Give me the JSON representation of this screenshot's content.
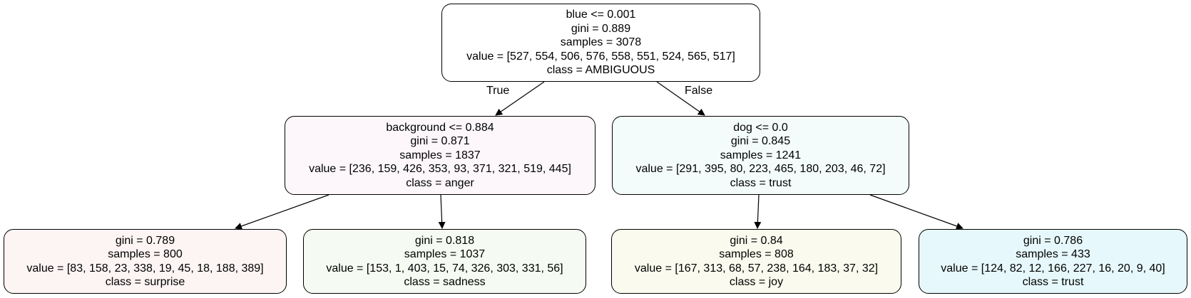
{
  "colors": {
    "root": "#ffffff",
    "n1": "#fdf7fb",
    "n2": "#f3fcfb",
    "n3": "#fdf4f4",
    "n4": "#f5fbf2",
    "n5": "#fafbee",
    "n6": "#e6f8fb"
  },
  "edges": {
    "true_label": "True",
    "false_label": "False"
  },
  "nodes": {
    "root": {
      "split": "blue <= 0.001",
      "gini": "gini = 0.889",
      "samples": "samples = 3078",
      "value": "value = [527, 554, 506, 576, 558, 551, 524, 565, 517]",
      "class": "class = AMBIGUOUS"
    },
    "left": {
      "split": "background <= 0.884",
      "gini": "gini = 0.871",
      "samples": "samples = 1837",
      "value": "value = [236, 159, 426, 353, 93, 371, 321, 519, 445]",
      "class": "class = anger"
    },
    "right": {
      "split": "dog <= 0.0",
      "gini": "gini = 0.845",
      "samples": "samples = 1241",
      "value": "value = [291, 395, 80, 223, 465, 180, 203, 46, 72]",
      "class": "class = trust"
    },
    "ll": {
      "gini": "gini = 0.789",
      "samples": "samples = 800",
      "value": "value = [83, 158, 23, 338, 19, 45, 18, 188, 389]",
      "class": "class = surprise"
    },
    "lr": {
      "gini": "gini = 0.818",
      "samples": "samples = 1037",
      "value": "value = [153, 1, 403, 15, 74, 326, 303, 331, 56]",
      "class": "class = sadness"
    },
    "rl": {
      "gini": "gini = 0.84",
      "samples": "samples = 808",
      "value": "value = [167, 313, 68, 57, 238, 164, 183, 37, 32]",
      "class": "class = joy"
    },
    "rr": {
      "gini": "gini = 0.786",
      "samples": "samples = 433",
      "value": "value = [124, 82, 12, 166, 227, 16, 20, 9, 40]",
      "class": "class = trust"
    }
  }
}
